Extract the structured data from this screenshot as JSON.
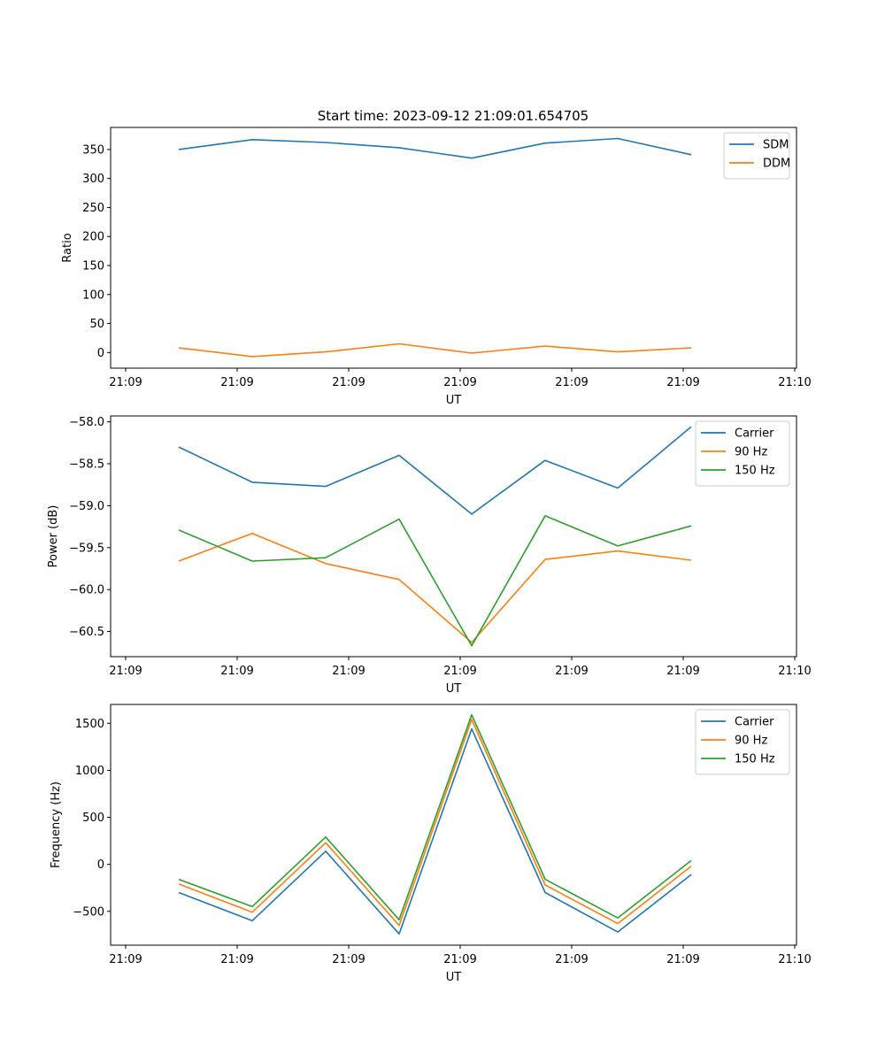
{
  "figure_title": "Start time: 2023-09-12 21:09:01.654705",
  "chart_data": [
    {
      "type": "line",
      "title": "Start time: 2023-09-12 21:09:01.654705",
      "xlabel": "UT",
      "ylabel": "Ratio",
      "x_ticks": [
        "21:09",
        "21:09",
        "21:09",
        "21:09",
        "21:09",
        "21:09",
        "21:10"
      ],
      "y_ticks": [
        0,
        50,
        100,
        150,
        200,
        250,
        300,
        350
      ],
      "ylim": [
        -27,
        388
      ],
      "legend_position": "top-right",
      "series": [
        {
          "name": "SDM",
          "color": "#1f77b4",
          "values": [
            350,
            367,
            362,
            353,
            335,
            361,
            369,
            341
          ]
        },
        {
          "name": "DDM",
          "color": "#ff7f0e",
          "values": [
            8,
            -7,
            1,
            15,
            -1,
            11,
            1,
            8
          ]
        }
      ]
    },
    {
      "type": "line",
      "title": "",
      "xlabel": "UT",
      "ylabel": "Power (dB)",
      "x_ticks": [
        "21:09",
        "21:09",
        "21:09",
        "21:09",
        "21:09",
        "21:09",
        "21:10"
      ],
      "y_ticks": [
        -58.0,
        -58.5,
        -59.0,
        -59.5,
        -60.0,
        -60.5
      ],
      "ylim": [
        -60.8,
        -57.93
      ],
      "legend_position": "top-right",
      "series": [
        {
          "name": "Carrier",
          "color": "#1f77b4",
          "values": [
            -58.3,
            -58.72,
            -58.77,
            -58.4,
            -59.1,
            -58.46,
            -58.79,
            -58.06
          ]
        },
        {
          "name": "90 Hz",
          "color": "#ff7f0e",
          "values": [
            -59.66,
            -59.33,
            -59.69,
            -59.88,
            -60.63,
            -59.64,
            -59.54,
            -59.65
          ]
        },
        {
          "name": "150 Hz",
          "color": "#2ca02c",
          "values": [
            -59.29,
            -59.66,
            -59.62,
            -59.16,
            -60.67,
            -59.12,
            -59.48,
            -59.24
          ]
        }
      ]
    },
    {
      "type": "line",
      "title": "",
      "xlabel": "UT",
      "ylabel": "Frequency (Hz)",
      "x_ticks": [
        "21:09",
        "21:09",
        "21:09",
        "21:09",
        "21:09",
        "21:09",
        "21:10"
      ],
      "y_ticks": [
        -500,
        0,
        500,
        1000,
        1500
      ],
      "ylim": [
        -860,
        1700
      ],
      "legend_position": "top-right",
      "series": [
        {
          "name": "Carrier",
          "color": "#1f77b4",
          "values": [
            -300,
            -600,
            140,
            -740,
            1440,
            -300,
            -720,
            -110
          ]
        },
        {
          "name": "90 Hz",
          "color": "#ff7f0e",
          "values": [
            -210,
            -510,
            230,
            -650,
            1540,
            -220,
            -630,
            -20
          ]
        },
        {
          "name": "150 Hz",
          "color": "#2ca02c",
          "values": [
            -160,
            -450,
            290,
            -590,
            1590,
            -160,
            -570,
            40
          ]
        }
      ]
    }
  ]
}
